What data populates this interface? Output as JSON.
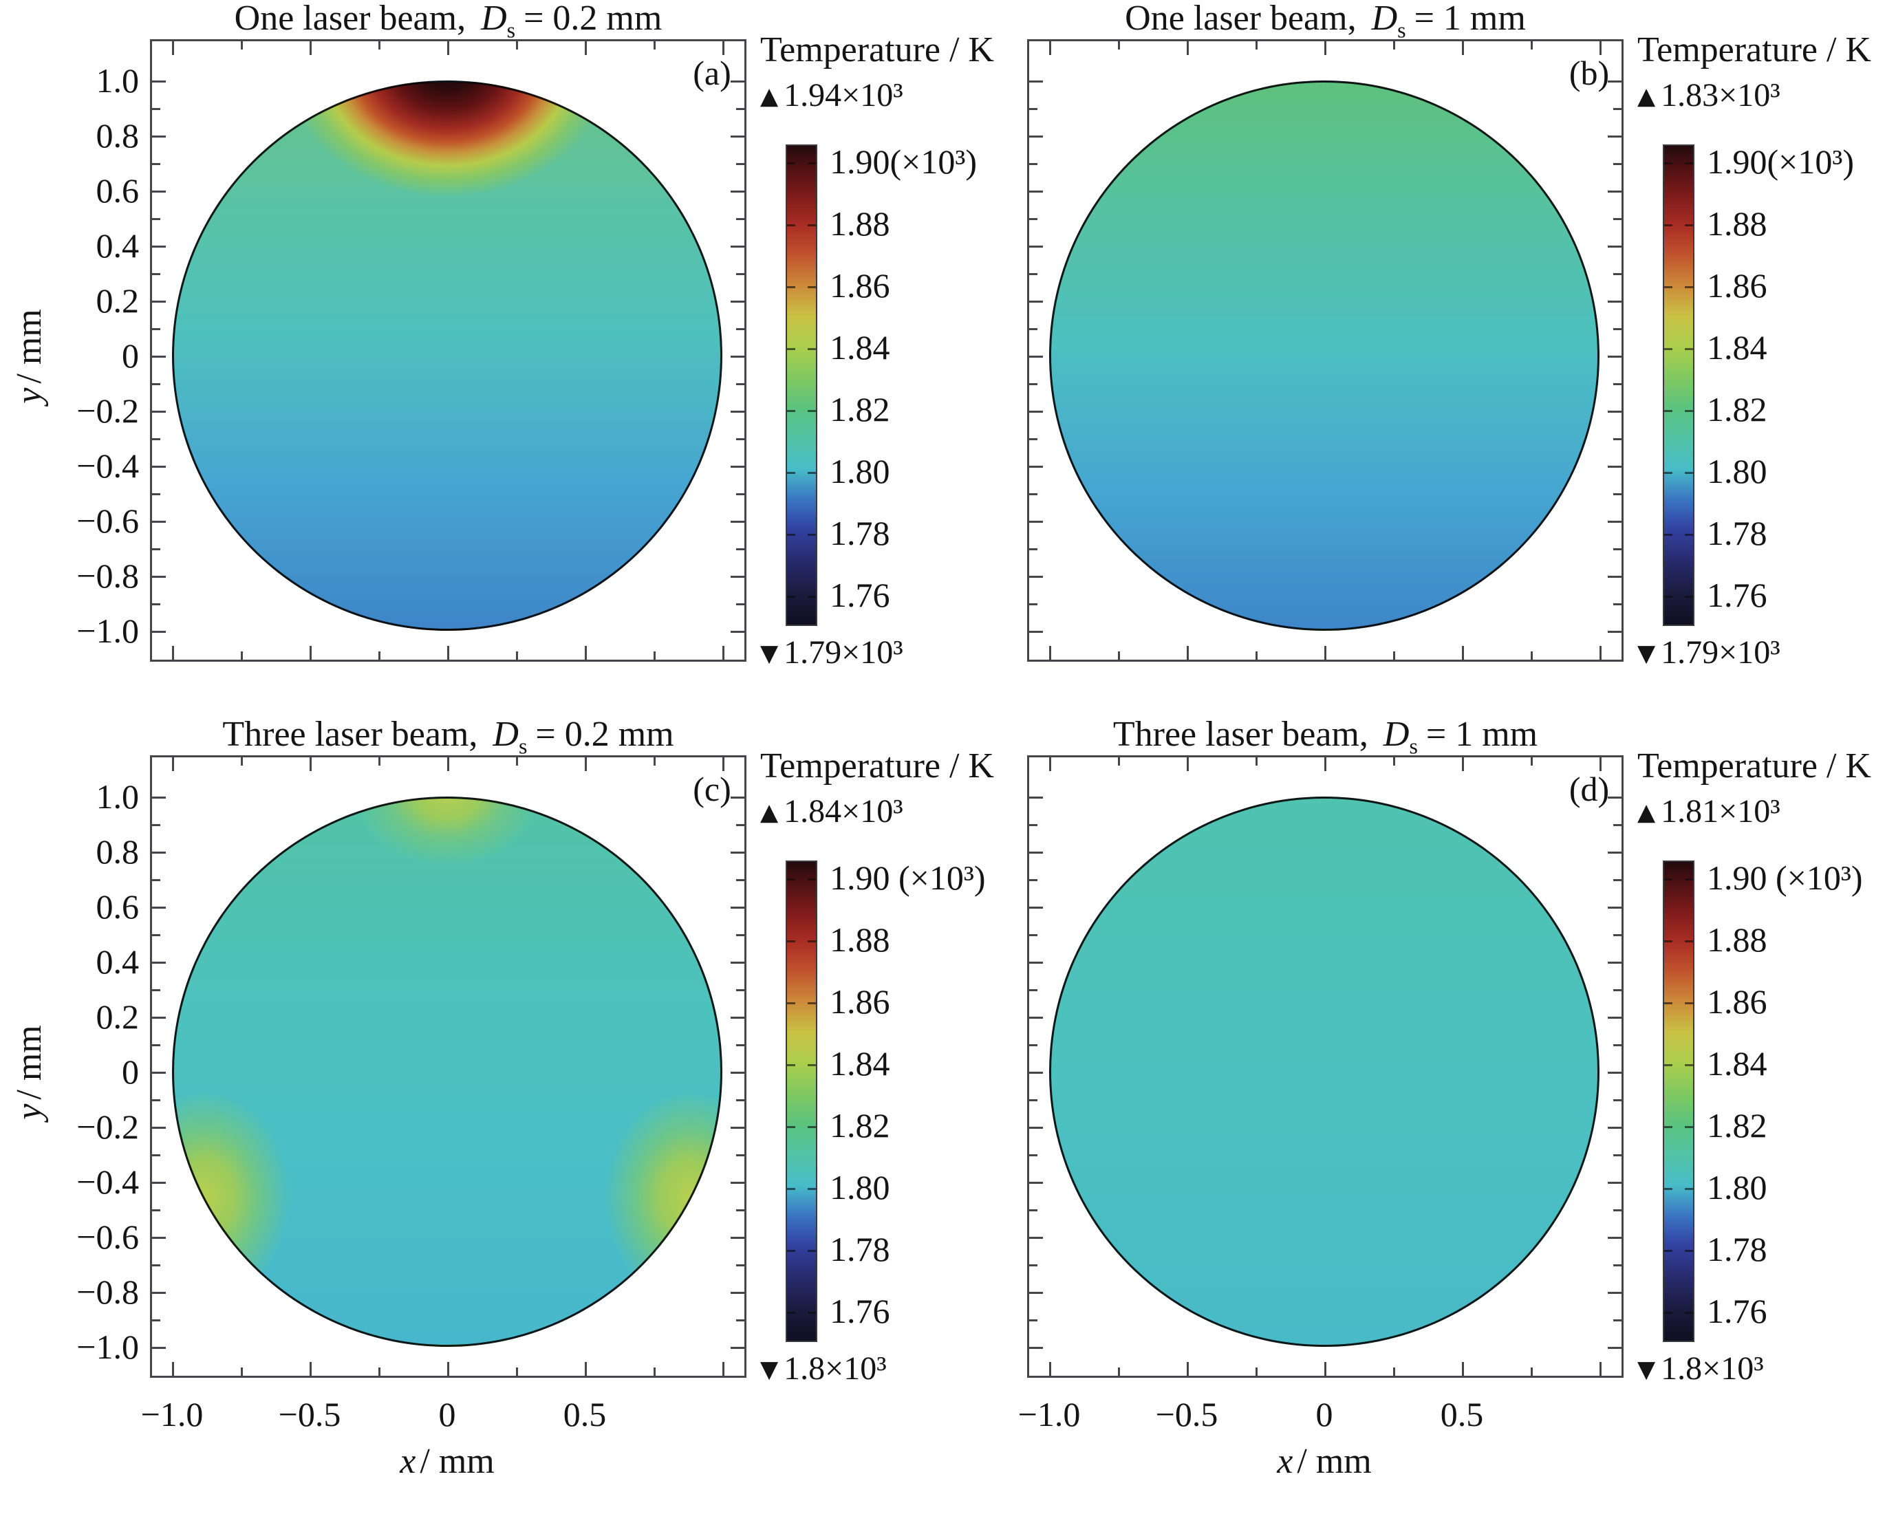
{
  "figure": {
    "axes": {
      "x_label": {
        "symbol": "x",
        "rest": "/ mm"
      },
      "y_label": {
        "symbol": "y",
        "rest": "/ mm"
      },
      "x_ticks": [
        "−1.0",
        "−0.5",
        "0",
        "0.5"
      ],
      "y_ticks": [
        "1.0",
        "0.8",
        "0.6",
        "0.4",
        "0.2",
        "0",
        "−0.2",
        "−0.4",
        "−0.6",
        "−0.8",
        "−1.0"
      ]
    },
    "panels": [
      {
        "letter": "(a)",
        "title": {
          "text": "One laser beam,",
          "symbol": "D",
          "subscript": "s",
          "value": "= 0.2 mm"
        },
        "colorbar": {
          "heading": "Temperature / K",
          "max_marker": "▲",
          "max_value": "1.94×10³",
          "min_marker": "▼",
          "min_value": "1.79×10³",
          "tick_labels": [
            "1.90(×10³)",
            "1.88",
            "1.86",
            "1.84",
            "1.82",
            "1.80",
            "1.78",
            "1.76"
          ]
        }
      },
      {
        "letter": "(b)",
        "title": {
          "text": "One laser beam,",
          "symbol": "D",
          "subscript": "s",
          "value": "= 1 mm"
        },
        "colorbar": {
          "heading": "Temperature / K",
          "max_marker": "▲",
          "max_value": "1.83×10³",
          "min_marker": "▼",
          "min_value": "1.79×10³",
          "tick_labels": [
            "1.90(×10³)",
            "1.88",
            "1.86",
            "1.84",
            "1.82",
            "1.80",
            "1.78",
            "1.76"
          ]
        }
      },
      {
        "letter": "(c)",
        "title": {
          "text": "Three laser beam,",
          "symbol": "D",
          "subscript": "s",
          "value": "= 0.2 mm"
        },
        "colorbar": {
          "heading": "Temperature / K",
          "max_marker": "▲",
          "max_value": "1.84×10³",
          "min_marker": "▼",
          "min_value": "1.8×10³",
          "tick_labels": [
            "1.90 (×10³)",
            "1.88",
            "1.86",
            "1.84",
            "1.82",
            "1.80",
            "1.78",
            "1.76"
          ]
        }
      },
      {
        "letter": "(d)",
        "title": {
          "text": "Three laser beam,",
          "symbol": "D",
          "subscript": "s",
          "value": "= 1 mm"
        },
        "colorbar": {
          "heading": "Temperature / K",
          "max_marker": "▲",
          "max_value": "1.81×10³",
          "min_marker": "▼",
          "min_value": "1.8×10³",
          "tick_labels": [
            "1.90 (×10³)",
            "1.88",
            "1.86",
            "1.84",
            "1.82",
            "1.80",
            "1.78",
            "1.76"
          ]
        }
      }
    ]
  },
  "chart_data": [
    {
      "type": "heatmap",
      "panel": "(a)",
      "title": "One laser beam, Ds = 0.2 mm",
      "field": "Temperature / K",
      "domain": "circular disk of radius 1 mm",
      "x_axis": {
        "label": "x / mm",
        "range": [
          -1.0,
          1.0
        ],
        "ticks": [
          -1.0,
          -0.5,
          0,
          0.5
        ]
      },
      "y_axis": {
        "label": "y / mm",
        "range": [
          -1.0,
          1.0
        ],
        "ticks": [
          1.0,
          0.8,
          0.6,
          0.4,
          0.2,
          0,
          -0.2,
          -0.4,
          -0.6,
          -0.8,
          -1.0
        ]
      },
      "T_max_K": 1940,
      "T_min_K": 1790,
      "colorbar_ticks_K": [
        1900,
        1880,
        1860,
        1840,
        1820,
        1800,
        1780,
        1760
      ],
      "colorbar_scale": "×10³",
      "hotspots_mm": [
        [
          0,
          1.0
        ]
      ],
      "pattern": "single hotspot ~1940 K (near-black/dark-red core) at top rim (0, +1.0), falling through red/orange/yellow-green ring to ~1830 K within ~0.3 mm; bulk teal ~1800–1815 K; coolest blue ~1790 K at bottom rim"
    },
    {
      "type": "heatmap",
      "panel": "(b)",
      "title": "One laser beam, Ds = 1 mm",
      "field": "Temperature / K",
      "domain": "circular disk of radius 1 mm",
      "x_axis": {
        "label": "x / mm",
        "range": [
          -1.0,
          1.0
        ],
        "ticks": [
          -1.0,
          -0.5,
          0,
          0.5
        ]
      },
      "y_axis": {
        "label": "y / mm",
        "range": [
          -1.0,
          1.0
        ],
        "ticks": [
          1.0,
          0.8,
          0.6,
          0.4,
          0.2,
          0,
          -0.2,
          -0.4,
          -0.6,
          -0.8,
          -1.0
        ]
      },
      "T_max_K": 1830,
      "T_min_K": 1790,
      "colorbar_ticks_K": [
        1900,
        1880,
        1860,
        1840,
        1820,
        1800,
        1780,
        1760
      ],
      "colorbar_scale": "×10³",
      "hotspots_mm": [],
      "pattern": "no sharp hotspot; smooth vertical gradient from green ~1820 K at top rim through teal ~1805 K mid-disk to blue ~1790 K at bottom rim"
    },
    {
      "type": "heatmap",
      "panel": "(c)",
      "title": "Three laser beam, Ds = 0.2 mm",
      "field": "Temperature / K",
      "domain": "circular disk of radius 1 mm",
      "x_axis": {
        "label": "x / mm",
        "range": [
          -1.0,
          1.0
        ],
        "ticks": [
          -1.0,
          -0.5,
          0,
          0.5
        ]
      },
      "y_axis": {
        "label": "y / mm",
        "range": [
          -1.0,
          1.0
        ],
        "ticks": [
          1.0,
          0.8,
          0.6,
          0.4,
          0.2,
          0,
          -0.2,
          -0.4,
          -0.6,
          -0.8,
          -1.0
        ]
      },
      "T_max_K": 1840,
      "T_min_K": 1800,
      "colorbar_ticks_K": [
        1900,
        1880,
        1860,
        1840,
        1820,
        1800,
        1780,
        1760
      ],
      "colorbar_scale": "×10³",
      "hotspots_mm": [
        [
          0,
          1.0
        ],
        [
          -0.87,
          -0.5
        ],
        [
          0.87,
          -0.5
        ]
      ],
      "pattern": "three faint yellow-green hotspots ~1840 K spaced 120° on the rim (top, lower-left, lower-right); bulk nearly uniform teal ~1805 K"
    },
    {
      "type": "heatmap",
      "panel": "(d)",
      "title": "Three laser beam, Ds = 1 mm",
      "field": "Temperature / K",
      "domain": "circular disk of radius 1 mm",
      "x_axis": {
        "label": "x / mm",
        "range": [
          -1.0,
          1.0
        ],
        "ticks": [
          -1.0,
          -0.5,
          0,
          0.5
        ]
      },
      "y_axis": {
        "label": "y / mm",
        "range": [
          -1.0,
          1.0
        ],
        "ticks": [
          1.0,
          0.8,
          0.6,
          0.4,
          0.2,
          0,
          -0.2,
          -0.4,
          -0.6,
          -0.8,
          -1.0
        ]
      },
      "T_max_K": 1810,
      "T_min_K": 1800,
      "colorbar_ticks_K": [
        1900,
        1880,
        1860,
        1840,
        1820,
        1800,
        1780,
        1760
      ],
      "colorbar_scale": "×10³",
      "hotspots_mm": [],
      "pattern": "essentially uniform teal ~1805 K across the whole disk"
    }
  ],
  "colormap": {
    "name": "thermal-rainbow",
    "stops": [
      {
        "T_K": 1750,
        "hex": "#0f0f1f"
      },
      {
        "T_K": 1760,
        "hex": "#1c1c41"
      },
      {
        "T_K": 1780,
        "hex": "#32409f"
      },
      {
        "T_K": 1800,
        "hex": "#48bcc8"
      },
      {
        "T_K": 1820,
        "hex": "#5ac380"
      },
      {
        "T_K": 1840,
        "hex": "#abce4c"
      },
      {
        "T_K": 1860,
        "hex": "#cd8b3a"
      },
      {
        "T_K": 1880,
        "hex": "#a92d24"
      },
      {
        "T_K": 1900,
        "hex": "#481012"
      },
      {
        "T_K": 1906,
        "hex": "#220a0d"
      }
    ]
  }
}
